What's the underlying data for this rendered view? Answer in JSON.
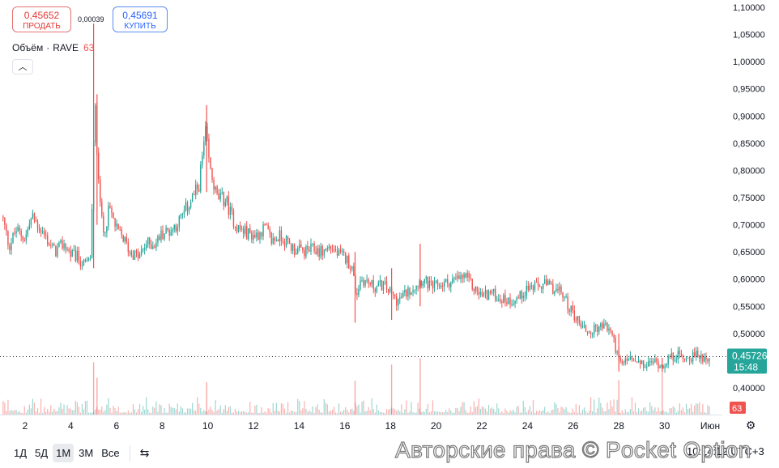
{
  "sell": {
    "price": "0,45652",
    "label": "ПРОДАТЬ"
  },
  "buy": {
    "price": "0,45691",
    "label": "КУПИТЬ"
  },
  "spread": "0,00039",
  "legend": {
    "label": "Объём",
    "separator": "·",
    "symbol": "RAVE",
    "volume": "63"
  },
  "range_buttons": [
    "1Д",
    "5Д",
    "1М",
    "3М",
    "Все"
  ],
  "active_range": "1М",
  "time_readout": "10:14:12 UTC+3",
  "watermark": "Авторские права © Pocket Option",
  "colors": {
    "up": "#26a69a",
    "down": "#ef5350",
    "price_tag": "#26a69a",
    "volume_tag": "#ef5350"
  },
  "chart_data": {
    "type": "candlestick",
    "yaxis": {
      "min": 0.39,
      "max": 1.11,
      "ticks": [
        1.1,
        1.05,
        1.0,
        0.95,
        0.9,
        0.85,
        0.8,
        0.75,
        0.7,
        0.65,
        0.6,
        0.55,
        0.5,
        0.45,
        0.4
      ],
      "tick_labels": [
        "1,10000",
        "1,05000",
        "1,00000",
        "0,95000",
        "0,90000",
        "0,85000",
        "0,80000",
        "0,75000",
        "0,70000",
        "0,65000",
        "0,60000",
        "0,55000",
        "0,50000",
        "0,45000",
        "0,40000"
      ]
    },
    "xaxis": {
      "start_day": 1,
      "end_day": 32,
      "ticks": [
        2,
        4,
        6,
        8,
        10,
        12,
        14,
        16,
        18,
        20,
        22,
        24,
        26,
        28,
        30,
        32
      ],
      "tick_labels": [
        "2",
        "4",
        "6",
        "8",
        "10",
        "12",
        "14",
        "16",
        "18",
        "20",
        "22",
        "24",
        "26",
        "28",
        "30",
        "Июн"
      ]
    },
    "current_price": {
      "value": 0.45726,
      "label": "0,45726",
      "countdown": "15:48"
    },
    "volume_last": "63",
    "price_path": [
      [
        1.0,
        0.715
      ],
      [
        1.3,
        0.66
      ],
      [
        1.6,
        0.69
      ],
      [
        2.0,
        0.675
      ],
      [
        2.3,
        0.715
      ],
      [
        2.7,
        0.69
      ],
      [
        3.0,
        0.67
      ],
      [
        3.3,
        0.65
      ],
      [
        3.7,
        0.665
      ],
      [
        4.0,
        0.645
      ],
      [
        4.3,
        0.64
      ],
      [
        4.6,
        0.625
      ],
      [
        4.85,
        0.635
      ],
      [
        4.95,
        0.75
      ],
      [
        5.05,
        0.93
      ],
      [
        5.15,
        0.84
      ],
      [
        5.4,
        0.68
      ],
      [
        5.7,
        0.73
      ],
      [
        6.0,
        0.69
      ],
      [
        6.3,
        0.675
      ],
      [
        6.6,
        0.65
      ],
      [
        7.0,
        0.64
      ],
      [
        7.3,
        0.665
      ],
      [
        7.7,
        0.665
      ],
      [
        8.0,
        0.685
      ],
      [
        8.4,
        0.69
      ],
      [
        8.8,
        0.71
      ],
      [
        9.2,
        0.74
      ],
      [
        9.6,
        0.77
      ],
      [
        9.9,
        0.87
      ],
      [
        10.1,
        0.8
      ],
      [
        10.4,
        0.75
      ],
      [
        10.8,
        0.745
      ],
      [
        11.0,
        0.72
      ],
      [
        11.3,
        0.695
      ],
      [
        11.7,
        0.685
      ],
      [
        12.1,
        0.68
      ],
      [
        12.5,
        0.695
      ],
      [
        12.8,
        0.67
      ],
      [
        13.2,
        0.68
      ],
      [
        13.5,
        0.665
      ],
      [
        13.8,
        0.655
      ],
      [
        14.2,
        0.65
      ],
      [
        14.6,
        0.655
      ],
      [
        15.0,
        0.65
      ],
      [
        15.4,
        0.66
      ],
      [
        15.7,
        0.645
      ],
      [
        16.0,
        0.64
      ],
      [
        16.3,
        0.625
      ],
      [
        16.5,
        0.57
      ],
      [
        16.7,
        0.6
      ],
      [
        17.0,
        0.595
      ],
      [
        17.3,
        0.585
      ],
      [
        17.7,
        0.59
      ],
      [
        18.0,
        0.575
      ],
      [
        18.3,
        0.56
      ],
      [
        18.7,
        0.575
      ],
      [
        19.1,
        0.59
      ],
      [
        19.4,
        0.6
      ],
      [
        19.8,
        0.585
      ],
      [
        20.2,
        0.59
      ],
      [
        20.6,
        0.595
      ],
      [
        21.0,
        0.6
      ],
      [
        21.3,
        0.605
      ],
      [
        21.6,
        0.585
      ],
      [
        22.0,
        0.57
      ],
      [
        22.4,
        0.575
      ],
      [
        22.8,
        0.565
      ],
      [
        23.2,
        0.56
      ],
      [
        23.6,
        0.565
      ],
      [
        24.0,
        0.585
      ],
      [
        24.4,
        0.585
      ],
      [
        24.8,
        0.59
      ],
      [
        25.2,
        0.58
      ],
      [
        25.5,
        0.575
      ],
      [
        25.8,
        0.55
      ],
      [
        26.1,
        0.53
      ],
      [
        26.4,
        0.515
      ],
      [
        26.7,
        0.5
      ],
      [
        27.0,
        0.51
      ],
      [
        27.4,
        0.515
      ],
      [
        27.7,
        0.5
      ],
      [
        27.9,
        0.465
      ],
      [
        28.1,
        0.44
      ],
      [
        28.4,
        0.455
      ],
      [
        28.8,
        0.445
      ],
      [
        29.2,
        0.44
      ],
      [
        29.5,
        0.45
      ],
      [
        29.9,
        0.44
      ],
      [
        30.2,
        0.455
      ],
      [
        30.6,
        0.46
      ],
      [
        31.0,
        0.455
      ],
      [
        31.4,
        0.46
      ],
      [
        31.8,
        0.455
      ],
      [
        32.0,
        0.457
      ]
    ],
    "spikes": [
      {
        "x": 5.0,
        "high": 1.07,
        "low": 0.62
      },
      {
        "x": 5.15,
        "high": 0.94,
        "low": 0.7
      },
      {
        "x": 9.95,
        "high": 0.92,
        "low": 0.76
      },
      {
        "x": 16.45,
        "high": 0.65,
        "low": 0.52
      },
      {
        "x": 18.05,
        "high": 0.62,
        "low": 0.525
      },
      {
        "x": 19.3,
        "high": 0.665,
        "low": 0.55
      },
      {
        "x": 28.0,
        "high": 0.5,
        "low": 0.43
      },
      {
        "x": 29.9,
        "high": 0.455,
        "low": 0.43
      }
    ]
  }
}
